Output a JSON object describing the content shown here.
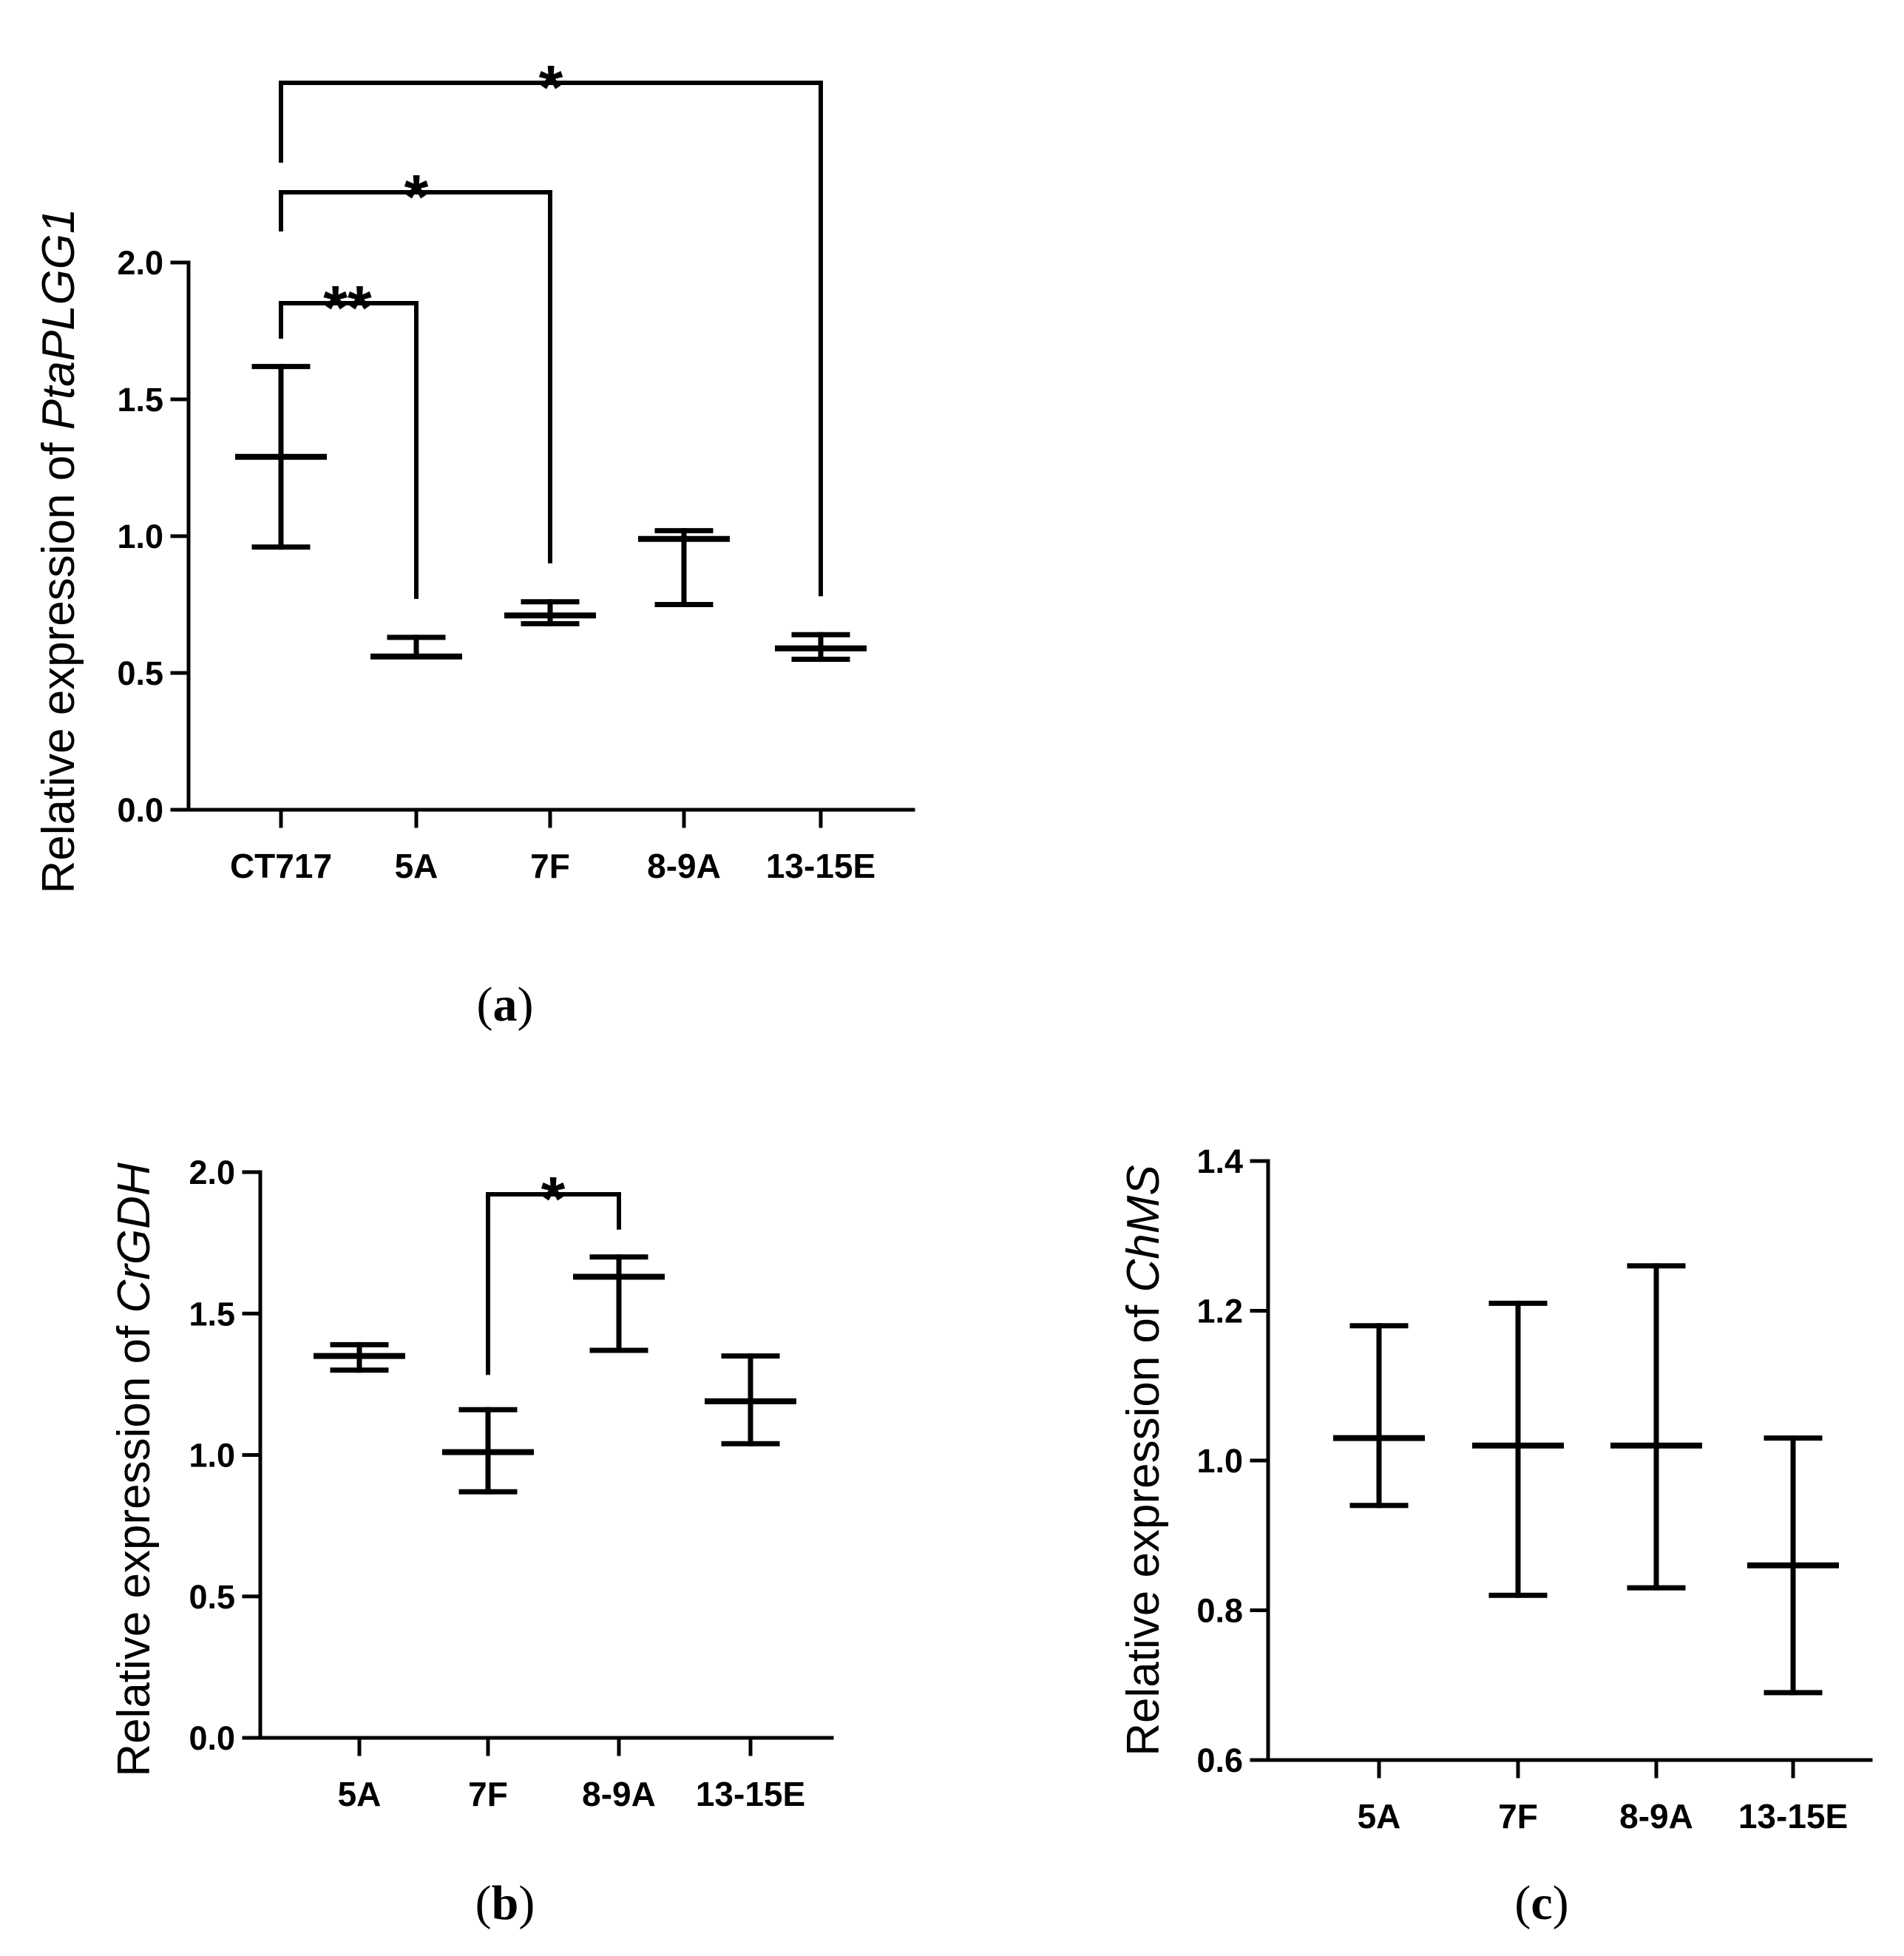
{
  "chart_data": [
    {
      "id": "a",
      "type": "errorbar",
      "panel_label": "a",
      "ylabel_prefix": "Relative expression of ",
      "ylabel_gene": "PtaPLGG1",
      "ylim": [
        0,
        2.0
      ],
      "yticks": [
        "0.0",
        "0.5",
        "1.0",
        "1.5",
        "2.0"
      ],
      "ytick_values": [
        0,
        0.5,
        1.0,
        1.5,
        2.0
      ],
      "categories": [
        "CT717",
        "5A",
        "7F",
        "8-9A",
        "13-15E"
      ],
      "series": [
        {
          "name": "mean",
          "values": [
            1.29,
            0.56,
            0.71,
            0.99,
            0.59
          ]
        },
        {
          "name": "upper",
          "values": [
            1.62,
            0.63,
            0.76,
            1.02,
            0.64
          ]
        },
        {
          "name": "lower",
          "values": [
            0.96,
            0.56,
            0.68,
            0.75,
            0.55
          ]
        }
      ],
      "significance": [
        {
          "from": "CT717",
          "to": "5A",
          "label": "**"
        },
        {
          "from": "CT717",
          "to": "7F",
          "label": "*"
        },
        {
          "from": "CT717",
          "to": "13-15E",
          "label": "*"
        }
      ]
    },
    {
      "id": "b",
      "type": "errorbar",
      "panel_label": "b",
      "ylabel_prefix": "Relative expression of ",
      "ylabel_gene": "CrGDH",
      "ylim": [
        0,
        2.0
      ],
      "yticks": [
        "0.0",
        "0.5",
        "1.0",
        "1.5",
        "2.0"
      ],
      "ytick_values": [
        0,
        0.5,
        1.0,
        1.5,
        2.0
      ],
      "categories": [
        "5A",
        "7F",
        "8-9A",
        "13-15E"
      ],
      "series": [
        {
          "name": "mean",
          "values": [
            1.35,
            1.01,
            1.63,
            1.19
          ]
        },
        {
          "name": "upper",
          "values": [
            1.39,
            1.16,
            1.7,
            1.35
          ]
        },
        {
          "name": "lower",
          "values": [
            1.3,
            0.87,
            1.37,
            1.04
          ]
        }
      ],
      "significance": [
        {
          "from": "7F",
          "to": "8-9A",
          "label": "*"
        }
      ]
    },
    {
      "id": "c",
      "type": "errorbar",
      "panel_label": "c",
      "ylabel_prefix": "Relative expression of ",
      "ylabel_gene": "ChMS",
      "ylim": [
        0.6,
        1.4
      ],
      "yticks": [
        "0.6",
        "0.8",
        "1.0",
        "1.2",
        "1.4"
      ],
      "ytick_values": [
        0.6,
        0.8,
        1.0,
        1.2,
        1.4
      ],
      "categories": [
        "5A",
        "7F",
        "8-9A",
        "13-15E"
      ],
      "series": [
        {
          "name": "mean",
          "values": [
            1.03,
            1.02,
            1.02,
            0.86
          ]
        },
        {
          "name": "upper",
          "values": [
            1.18,
            1.21,
            1.26,
            1.03
          ]
        },
        {
          "name": "lower",
          "values": [
            0.94,
            0.82,
            0.83,
            0.69
          ]
        }
      ],
      "significance": []
    }
  ]
}
